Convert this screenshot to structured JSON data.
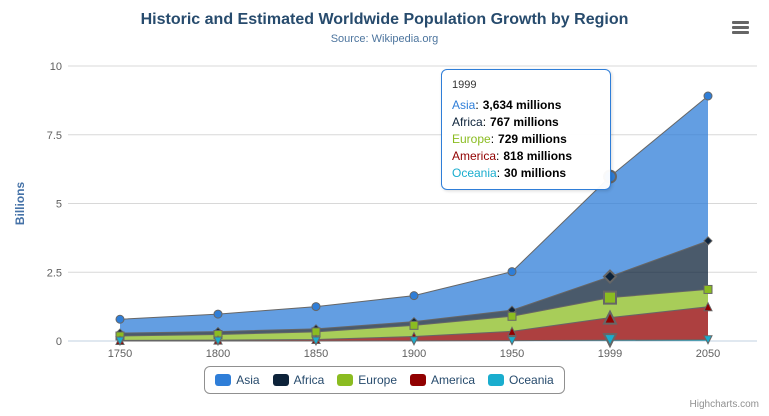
{
  "chart_data": {
    "type": "area",
    "stacking": "normal",
    "title": "Historic and Estimated Worldwide Population Growth by Region",
    "subtitle": "Source: Wikipedia.org",
    "xlabel": "",
    "ylabel": "Billions",
    "categories": [
      "1750",
      "1800",
      "1850",
      "1900",
      "1950",
      "1999",
      "2050"
    ],
    "unit": "millions",
    "series": [
      {
        "name": "Asia",
        "color": "#2f7ed8",
        "marker": "circle",
        "values": [
          502,
          635,
          809,
          947,
          1402,
          3634,
          5268
        ]
      },
      {
        "name": "Africa",
        "color": "#0d233a",
        "marker": "diamond",
        "values": [
          106,
          107,
          111,
          133,
          221,
          767,
          1766
        ]
      },
      {
        "name": "Europe",
        "color": "#8bbc21",
        "marker": "square",
        "values": [
          163,
          203,
          276,
          408,
          547,
          729,
          628
        ]
      },
      {
        "name": "America",
        "color": "#910000",
        "marker": "triangle",
        "values": [
          18,
          31,
          54,
          156,
          339,
          818,
          1201
        ]
      },
      {
        "name": "Oceania",
        "color": "#1aadce",
        "marker": "triangle-down",
        "values": [
          2,
          2,
          2,
          6,
          13,
          30,
          46
        ]
      }
    ],
    "yticks": [
      0,
      2.5,
      5,
      7.5,
      10
    ],
    "ylim": [
      0,
      10
    ],
    "grid": true,
    "legend_position": "bottom",
    "line_color": "#666666",
    "fill_opacity": 0.75,
    "hovered_category_index": 5
  },
  "tooltip": {
    "header": "1999",
    "separator": ":",
    "rows": [
      {
        "name": "Asia",
        "value": "3,634 millions",
        "color": "#2f7ed8"
      },
      {
        "name": "Africa",
        "value": "767 millions",
        "color": "#0d233a"
      },
      {
        "name": "Europe",
        "value": "729 millions",
        "color": "#8bbc21"
      },
      {
        "name": "America",
        "value": "818 millions",
        "color": "#910000"
      },
      {
        "name": "Oceania",
        "value": "30 millions",
        "color": "#1aadce"
      }
    ]
  },
  "credits": "Highcharts.com",
  "icons": {
    "export_menu": "hamburger-menu-icon"
  },
  "colors": {
    "title": "#274b6d",
    "subtitle": "#4d759e",
    "axis_label": "#606060",
    "axis_title": "#4572a7",
    "gridline": "#d8d8d8",
    "axis_line": "#c0d0e0",
    "legend_text": "#274b6d",
    "legend_border": "#909090",
    "tooltip_border": "#2f7ed8",
    "credits": "#909090",
    "menu_icon": "#666666"
  }
}
